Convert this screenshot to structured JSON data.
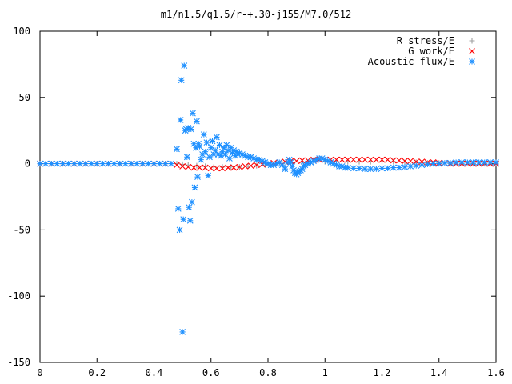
{
  "chart_data": {
    "type": "scatter",
    "title": "m1/n1.5/q1.5/r-+.30-j155/M7.0/512",
    "xlabel": "",
    "ylabel": "",
    "xlim": [
      0,
      1.6
    ],
    "ylim": [
      -150,
      100
    ],
    "x_ticks": [
      "0",
      "0.2",
      "0.4",
      "0.6",
      "0.8",
      "1",
      "1.2",
      "1.4",
      "1.6"
    ],
    "y_ticks": [
      "100",
      "50",
      "0",
      "-50",
      "-100",
      "-150"
    ],
    "grid": false,
    "legend_position": "top-right",
    "series": [
      {
        "name": "R stress/E",
        "marker": "+",
        "color": "#a0a0a0",
        "points": [
          [
            0.0,
            0
          ],
          [
            0.04,
            0
          ],
          [
            0.08,
            0
          ],
          [
            0.12,
            0
          ],
          [
            0.16,
            0
          ],
          [
            0.2,
            0
          ],
          [
            0.24,
            0
          ],
          [
            0.28,
            0
          ],
          [
            0.32,
            0
          ],
          [
            0.36,
            0
          ],
          [
            0.4,
            0
          ],
          [
            0.44,
            0
          ],
          [
            0.48,
            0
          ],
          [
            0.5,
            -0.5
          ],
          [
            0.52,
            -1
          ],
          [
            0.55,
            -1.5
          ],
          [
            0.58,
            -2
          ],
          [
            0.61,
            -2.5
          ],
          [
            0.64,
            -2.5
          ],
          [
            0.67,
            -2.5
          ],
          [
            0.7,
            -2.5
          ],
          [
            0.73,
            -2
          ],
          [
            0.76,
            -1.5
          ],
          [
            0.79,
            -1
          ],
          [
            0.82,
            -0.5
          ],
          [
            0.85,
            0
          ],
          [
            0.88,
            0.5
          ],
          [
            0.92,
            1
          ],
          [
            0.96,
            1.5
          ],
          [
            1.0,
            1.5
          ],
          [
            1.04,
            1.5
          ],
          [
            1.08,
            1.5
          ],
          [
            1.12,
            1.5
          ],
          [
            1.16,
            1.5
          ],
          [
            1.2,
            1.5
          ],
          [
            1.24,
            1.5
          ],
          [
            1.28,
            1
          ],
          [
            1.32,
            1
          ],
          [
            1.36,
            0.5
          ],
          [
            1.4,
            0.5
          ],
          [
            1.44,
            0
          ],
          [
            1.48,
            0
          ],
          [
            1.52,
            0
          ],
          [
            1.56,
            0
          ],
          [
            1.6,
            0
          ]
        ]
      },
      {
        "name": "G work/E",
        "marker": "x",
        "color": "#ff0000",
        "points": [
          [
            0.0,
            0
          ],
          [
            0.04,
            0
          ],
          [
            0.08,
            0
          ],
          [
            0.12,
            0
          ],
          [
            0.16,
            0
          ],
          [
            0.2,
            0
          ],
          [
            0.24,
            0
          ],
          [
            0.28,
            0
          ],
          [
            0.32,
            0
          ],
          [
            0.36,
            0
          ],
          [
            0.4,
            0
          ],
          [
            0.44,
            0
          ],
          [
            0.48,
            -1
          ],
          [
            0.5,
            -2
          ],
          [
            0.52,
            -2.5
          ],
          [
            0.54,
            -3
          ],
          [
            0.56,
            -3
          ],
          [
            0.58,
            -3
          ],
          [
            0.6,
            -3.5
          ],
          [
            0.62,
            -3.5
          ],
          [
            0.64,
            -3.5
          ],
          [
            0.66,
            -3
          ],
          [
            0.68,
            -3
          ],
          [
            0.7,
            -2.5
          ],
          [
            0.72,
            -2
          ],
          [
            0.74,
            -1.5
          ],
          [
            0.76,
            -1
          ],
          [
            0.78,
            -0.5
          ],
          [
            0.8,
            0
          ],
          [
            0.82,
            0.5
          ],
          [
            0.84,
            1
          ],
          [
            0.86,
            1.5
          ],
          [
            0.88,
            2
          ],
          [
            0.9,
            2
          ],
          [
            0.92,
            2.5
          ],
          [
            0.94,
            2.5
          ],
          [
            0.96,
            3
          ],
          [
            0.98,
            3
          ],
          [
            1.0,
            3
          ],
          [
            1.02,
            3
          ],
          [
            1.04,
            3
          ],
          [
            1.06,
            3
          ],
          [
            1.08,
            3
          ],
          [
            1.1,
            3
          ],
          [
            1.12,
            3
          ],
          [
            1.14,
            3
          ],
          [
            1.16,
            3
          ],
          [
            1.18,
            3
          ],
          [
            1.2,
            3
          ],
          [
            1.22,
            3
          ],
          [
            1.24,
            2.5
          ],
          [
            1.26,
            2.5
          ],
          [
            1.28,
            2
          ],
          [
            1.3,
            2
          ],
          [
            1.32,
            1.5
          ],
          [
            1.34,
            1.5
          ],
          [
            1.36,
            1
          ],
          [
            1.38,
            1
          ],
          [
            1.4,
            0.5
          ],
          [
            1.42,
            0.5
          ],
          [
            1.44,
            0
          ],
          [
            1.46,
            0
          ],
          [
            1.48,
            0
          ],
          [
            1.5,
            0
          ],
          [
            1.52,
            0
          ],
          [
            1.54,
            0
          ],
          [
            1.56,
            0
          ],
          [
            1.58,
            0
          ],
          [
            1.6,
            0
          ]
        ]
      },
      {
        "name": "Acoustic flux/E",
        "marker": "*",
        "color": "#1e90ff",
        "points": [
          [
            0.0,
            0
          ],
          [
            0.02,
            0
          ],
          [
            0.04,
            0
          ],
          [
            0.06,
            0
          ],
          [
            0.08,
            0
          ],
          [
            0.1,
            0
          ],
          [
            0.12,
            0
          ],
          [
            0.14,
            0
          ],
          [
            0.16,
            0
          ],
          [
            0.18,
            0
          ],
          [
            0.2,
            0
          ],
          [
            0.22,
            0
          ],
          [
            0.24,
            0
          ],
          [
            0.26,
            0
          ],
          [
            0.28,
            0
          ],
          [
            0.3,
            0
          ],
          [
            0.32,
            0
          ],
          [
            0.34,
            0
          ],
          [
            0.36,
            0
          ],
          [
            0.38,
            0
          ],
          [
            0.4,
            0
          ],
          [
            0.42,
            0
          ],
          [
            0.44,
            0
          ],
          [
            0.46,
            0
          ],
          [
            0.48,
            11
          ],
          [
            0.485,
            -34
          ],
          [
            0.49,
            -50
          ],
          [
            0.493,
            33
          ],
          [
            0.496,
            63
          ],
          [
            0.5,
            -127
          ],
          [
            0.503,
            -42
          ],
          [
            0.506,
            74
          ],
          [
            0.51,
            25
          ],
          [
            0.513,
            26
          ],
          [
            0.516,
            5
          ],
          [
            0.52,
            27
          ],
          [
            0.523,
            -33
          ],
          [
            0.527,
            -43
          ],
          [
            0.53,
            26
          ],
          [
            0.533,
            -29
          ],
          [
            0.536,
            38
          ],
          [
            0.54,
            15
          ],
          [
            0.543,
            -18
          ],
          [
            0.547,
            12
          ],
          [
            0.55,
            32
          ],
          [
            0.553,
            -10
          ],
          [
            0.556,
            15
          ],
          [
            0.56,
            13
          ],
          [
            0.565,
            3
          ],
          [
            0.57,
            7
          ],
          [
            0.575,
            22
          ],
          [
            0.58,
            9
          ],
          [
            0.585,
            16
          ],
          [
            0.59,
            -9
          ],
          [
            0.595,
            5
          ],
          [
            0.6,
            12
          ],
          [
            0.605,
            17
          ],
          [
            0.61,
            7
          ],
          [
            0.615,
            10
          ],
          [
            0.62,
            20
          ],
          [
            0.625,
            7
          ],
          [
            0.63,
            14
          ],
          [
            0.635,
            6
          ],
          [
            0.64,
            9
          ],
          [
            0.645,
            12
          ],
          [
            0.65,
            7
          ],
          [
            0.655,
            14
          ],
          [
            0.66,
            10
          ],
          [
            0.665,
            4
          ],
          [
            0.67,
            12
          ],
          [
            0.675,
            8
          ],
          [
            0.68,
            10
          ],
          [
            0.685,
            6
          ],
          [
            0.69,
            9
          ],
          [
            0.695,
            7
          ],
          [
            0.7,
            8
          ],
          [
            0.71,
            7
          ],
          [
            0.72,
            6
          ],
          [
            0.73,
            5
          ],
          [
            0.74,
            5
          ],
          [
            0.75,
            4
          ],
          [
            0.76,
            3
          ],
          [
            0.77,
            3
          ],
          [
            0.78,
            2
          ],
          [
            0.79,
            1
          ],
          [
            0.8,
            0
          ],
          [
            0.81,
            -1
          ],
          [
            0.82,
            -1
          ],
          [
            0.83,
            0
          ],
          [
            0.84,
            1
          ],
          [
            0.85,
            -1
          ],
          [
            0.86,
            -4
          ],
          [
            0.87,
            1
          ],
          [
            0.875,
            3
          ],
          [
            0.88,
            1
          ],
          [
            0.885,
            -2
          ],
          [
            0.89,
            -5
          ],
          [
            0.895,
            -7
          ],
          [
            0.9,
            -8
          ],
          [
            0.905,
            -7
          ],
          [
            0.91,
            -6
          ],
          [
            0.915,
            -5
          ],
          [
            0.92,
            -4
          ],
          [
            0.925,
            -2
          ],
          [
            0.93,
            -1
          ],
          [
            0.94,
            0
          ],
          [
            0.95,
            1
          ],
          [
            0.96,
            2
          ],
          [
            0.97,
            3
          ],
          [
            0.98,
            4
          ],
          [
            0.99,
            4
          ],
          [
            1.0,
            3
          ],
          [
            1.01,
            2
          ],
          [
            1.02,
            1
          ],
          [
            1.03,
            0
          ],
          [
            1.04,
            -1
          ],
          [
            1.05,
            -2
          ],
          [
            1.06,
            -2
          ],
          [
            1.07,
            -3
          ],
          [
            1.08,
            -3
          ],
          [
            1.1,
            -3.5
          ],
          [
            1.12,
            -3.5
          ],
          [
            1.14,
            -4
          ],
          [
            1.16,
            -4
          ],
          [
            1.18,
            -4
          ],
          [
            1.2,
            -3.5
          ],
          [
            1.22,
            -3.5
          ],
          [
            1.24,
            -3
          ],
          [
            1.26,
            -3
          ],
          [
            1.28,
            -2.5
          ],
          [
            1.3,
            -2
          ],
          [
            1.32,
            -1.5
          ],
          [
            1.34,
            -1
          ],
          [
            1.36,
            -0.5
          ],
          [
            1.38,
            0
          ],
          [
            1.4,
            0
          ],
          [
            1.42,
            0.5
          ],
          [
            1.44,
            0.5
          ],
          [
            1.46,
            1
          ],
          [
            1.48,
            1
          ],
          [
            1.5,
            1
          ],
          [
            1.52,
            1
          ],
          [
            1.54,
            1
          ],
          [
            1.56,
            1
          ],
          [
            1.58,
            1
          ],
          [
            1.6,
            1
          ]
        ]
      }
    ]
  }
}
